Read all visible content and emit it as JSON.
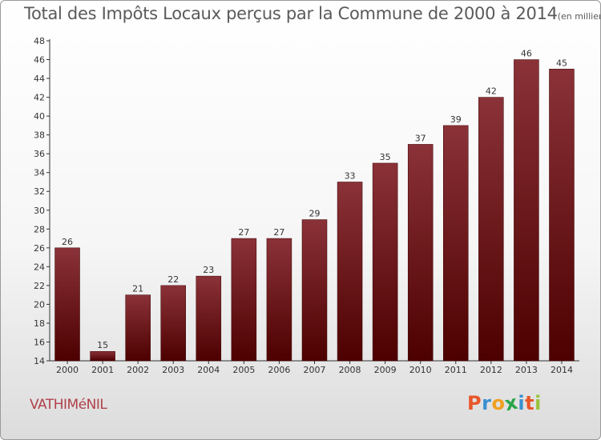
{
  "chart_data": {
    "type": "bar",
    "title": "Total des Impôts Locaux perçus par la Commune de 2000 à 2014",
    "title_unit": "(en milliers d'€)",
    "categories": [
      "2000",
      "2001",
      "2002",
      "2003",
      "2004",
      "2005",
      "2006",
      "2007",
      "2008",
      "2009",
      "2010",
      "2011",
      "2012",
      "2013",
      "2014"
    ],
    "values": [
      26,
      15,
      21,
      22,
      23,
      27,
      27,
      29,
      33,
      35,
      37,
      39,
      42,
      46,
      45
    ],
    "ylim": [
      14,
      48
    ],
    "yticks": [
      14,
      16,
      18,
      20,
      22,
      24,
      26,
      28,
      30,
      32,
      34,
      36,
      38,
      40,
      42,
      44,
      46,
      48
    ],
    "xlabel": "",
    "ylabel": "",
    "grid": false,
    "bar_color_top": "#8a3238",
    "bar_color_bottom": "#4d0000"
  },
  "commune": "VATHIMéNIL",
  "logo": {
    "letters": [
      "P",
      "r",
      "o",
      "x",
      "i",
      "t",
      "i"
    ],
    "colors": [
      "#e8562a",
      "#3a8fd0",
      "#f0a020",
      "#2aa54a",
      "#3a8fd0",
      "#e8562a",
      "#9bc23a"
    ]
  }
}
